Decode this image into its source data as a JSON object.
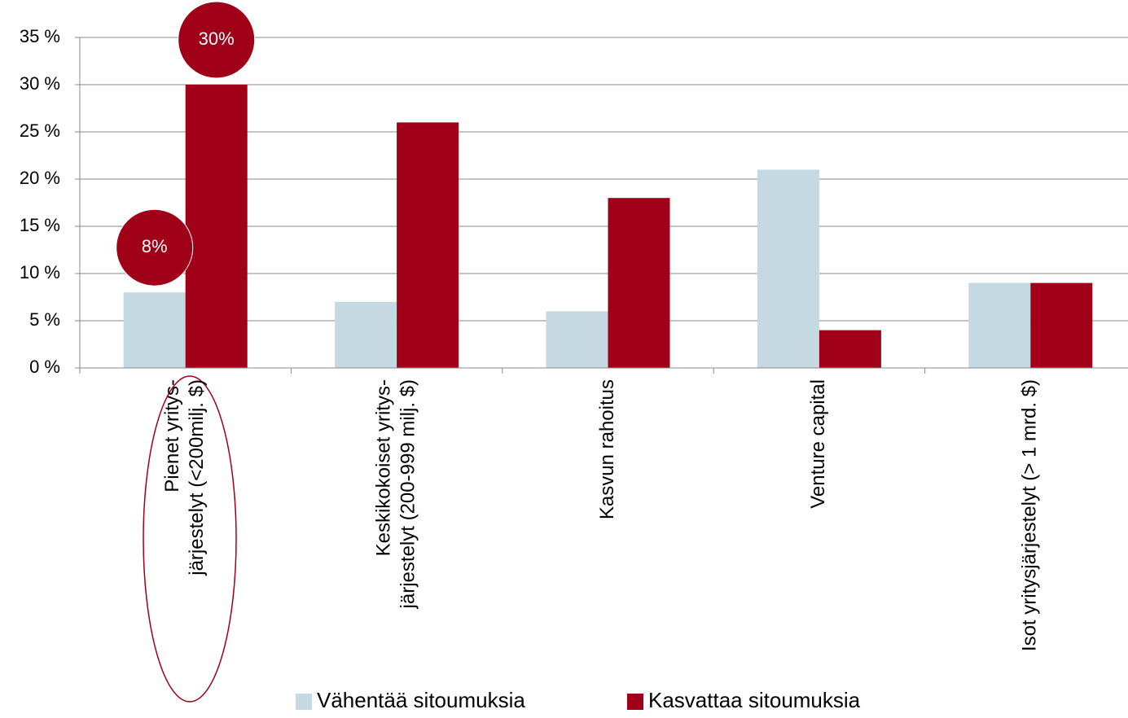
{
  "chart_data": {
    "type": "bar",
    "categories": [
      [
        "Pienet yritys-",
        "järjestelyt (<200milj. $)"
      ],
      [
        "Keskikokoiset yritys-",
        "järjestelyt (200-999 milj. $)"
      ],
      [
        "Kasvun rahoitus"
      ],
      [
        "Venture capital"
      ],
      [
        "Isot yritysjärjestelyt (> 1 mrd. $)"
      ]
    ],
    "series": [
      {
        "name": "Vähentää sitoumuksia",
        "color": "#c5d9e3",
        "values": [
          8,
          7,
          6,
          21,
          9
        ],
        "value_labels": [
          "8%",
          null,
          null,
          null,
          null
        ]
      },
      {
        "name": "Kasvattaa sitoumuksia",
        "color": "#a00018",
        "values": [
          30,
          26,
          18,
          4,
          9
        ],
        "value_labels": [
          "30%",
          null,
          null,
          null,
          null
        ]
      }
    ],
    "ylim": [
      0,
      35
    ],
    "yticks": [
      {
        "value": 0,
        "label": "0 %"
      },
      {
        "value": 5,
        "label": "5 %"
      },
      {
        "value": 10,
        "label": "10 %"
      },
      {
        "value": 15,
        "label": "15 %"
      },
      {
        "value": 20,
        "label": "20 %"
      },
      {
        "value": 25,
        "label": "25 %"
      },
      {
        "value": 30,
        "label": "30 %"
      },
      {
        "value": 35,
        "label": "35 %"
      }
    ],
    "grid": true,
    "legend": "bottom"
  }
}
